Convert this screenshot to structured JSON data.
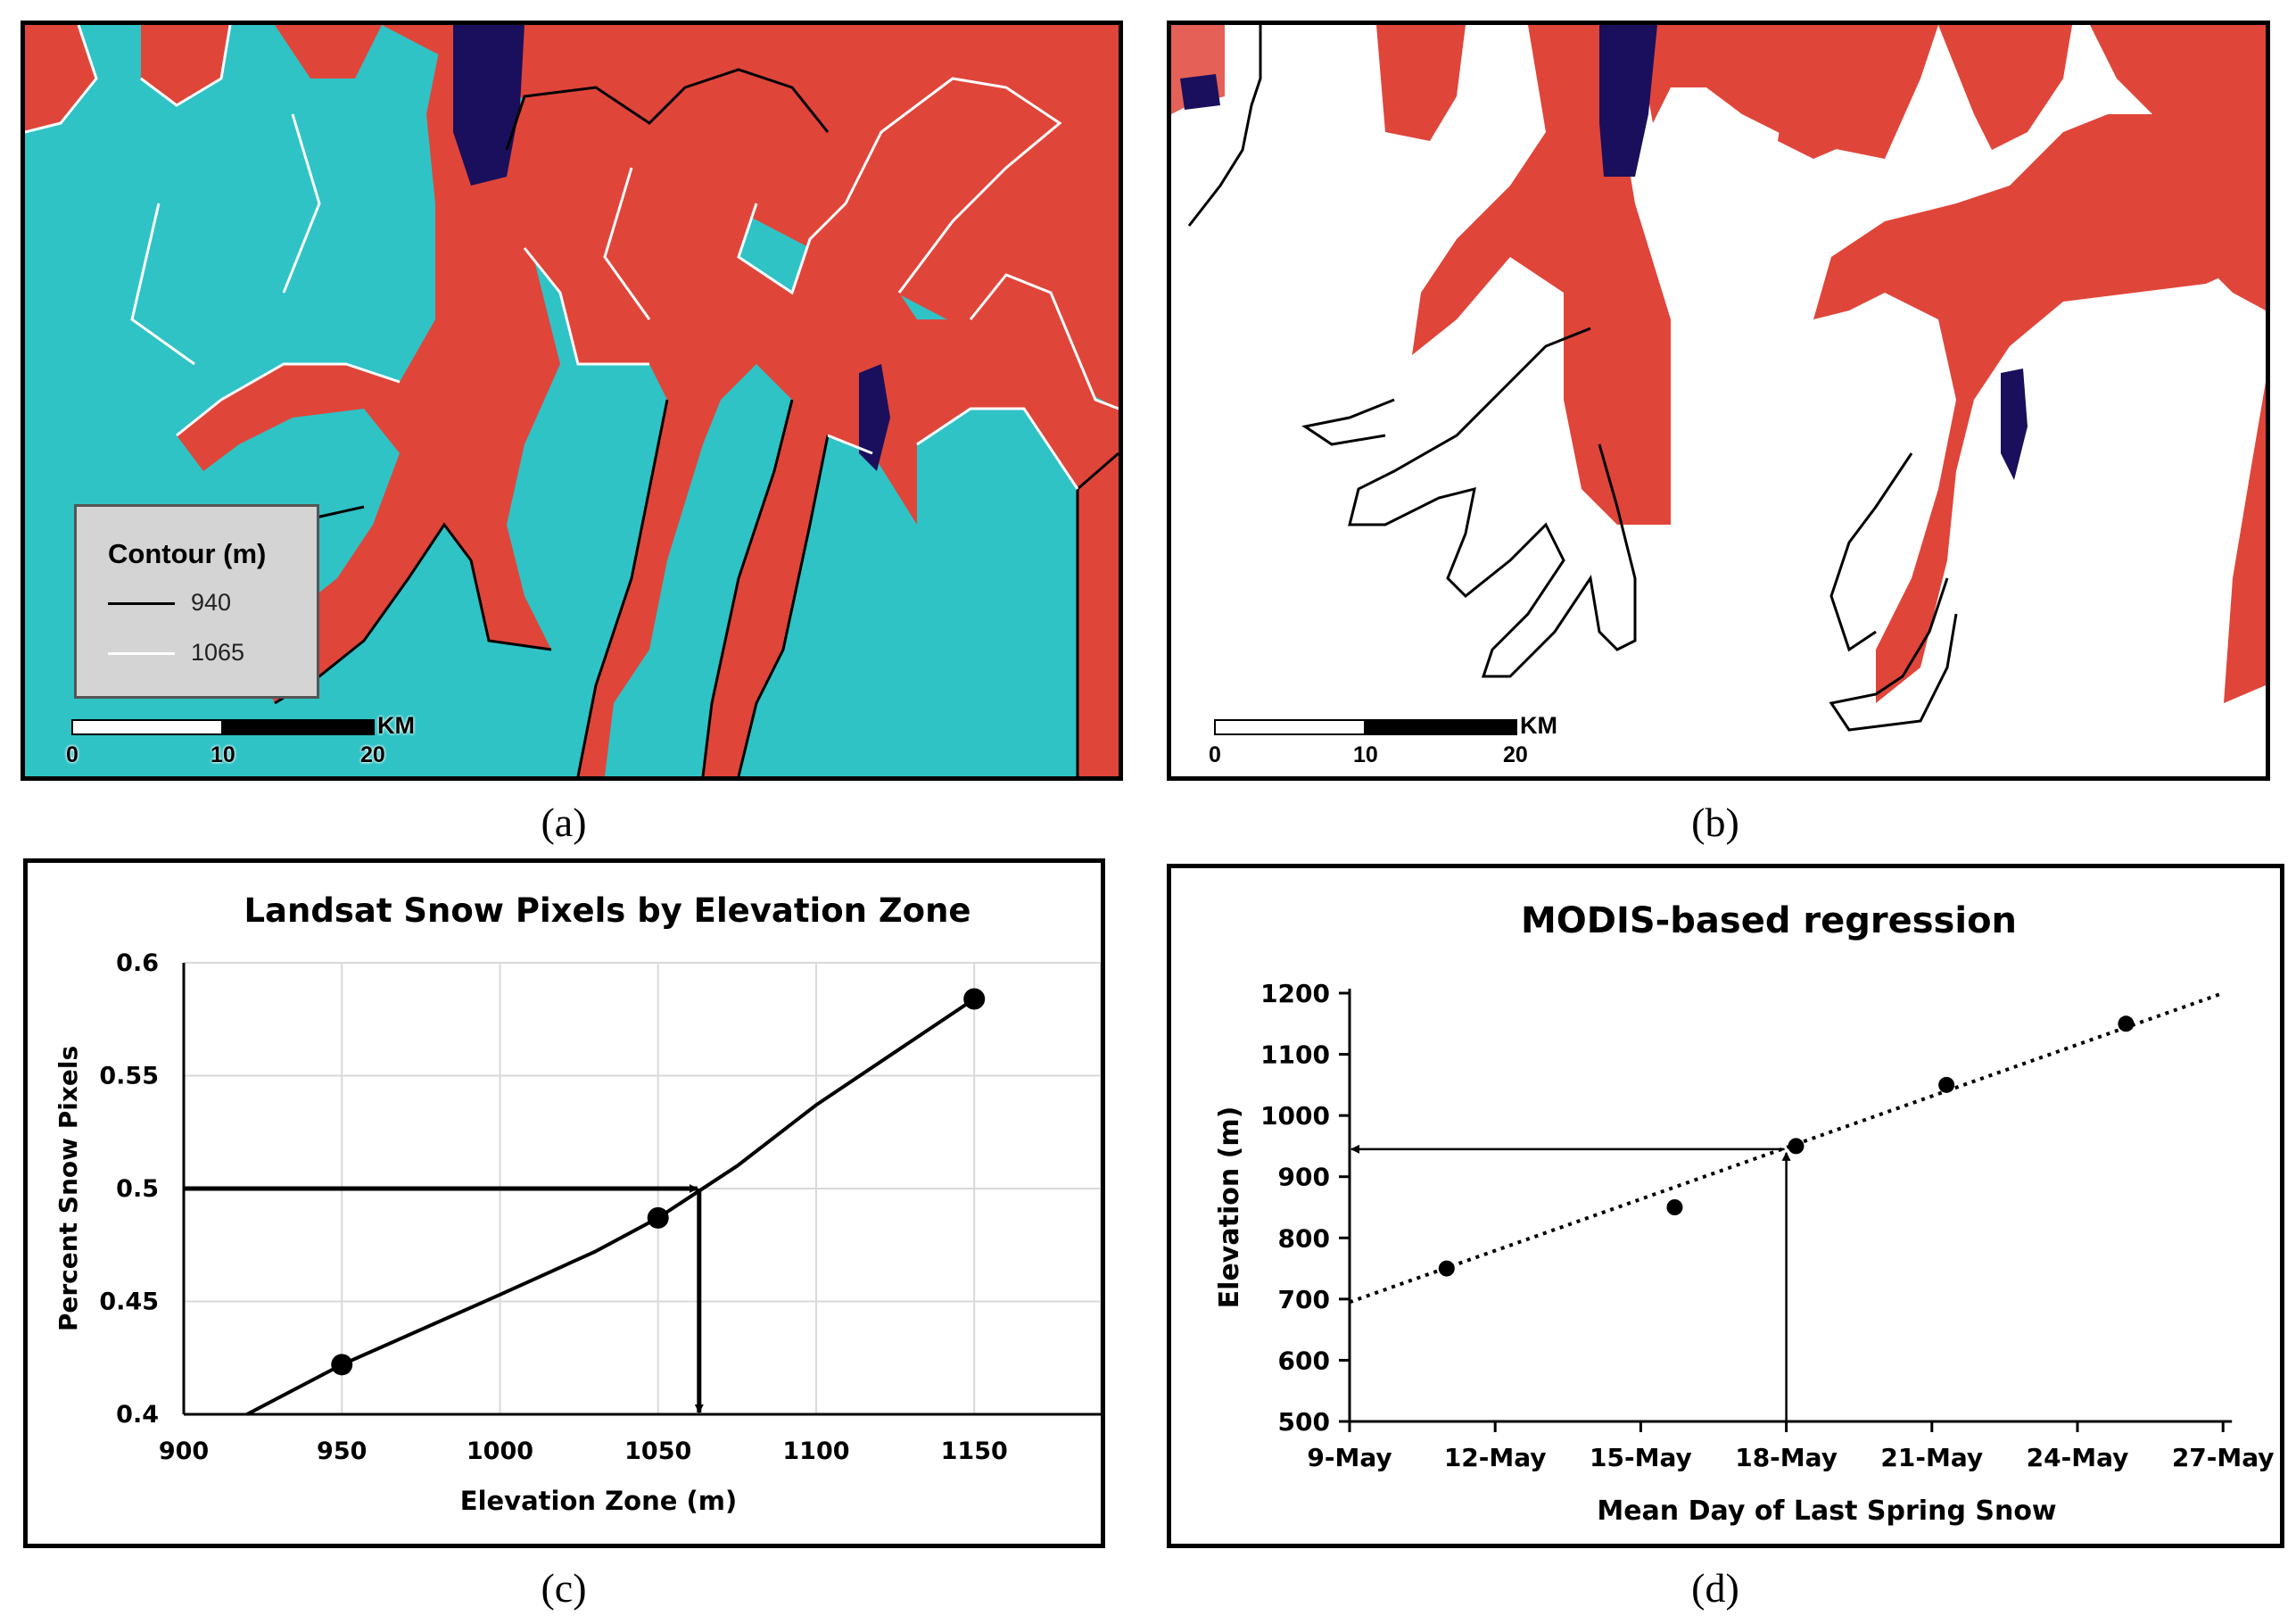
{
  "panels": {
    "a": {
      "caption": "(a)",
      "legend": {
        "title": "Contour (m)",
        "items": [
          {
            "label": "940",
            "color": "#000000"
          },
          {
            "label": "1065",
            "color": "#ffffff"
          }
        ]
      },
      "scalebar": {
        "unit": "KM",
        "ticks": [
          "0",
          "10",
          "20"
        ]
      },
      "colors": {
        "snow": "#2fc3c6",
        "land": "#e0453a",
        "water": "#1a0f5c"
      }
    },
    "b": {
      "caption": "(b)",
      "scalebar": {
        "unit": "KM",
        "ticks": [
          "0",
          "10",
          "20"
        ]
      },
      "colors": {
        "snow": "#ffffff",
        "land": "#e0453a",
        "water": "#1a0f5c"
      }
    },
    "c": {
      "caption": "(c)"
    },
    "d": {
      "caption": "(d)"
    }
  },
  "chart_data": [
    {
      "type": "line",
      "title": "Landsat Snow Pixels by Elevation Zone",
      "xlabel": "Elevation Zone (m)",
      "ylabel": "Percent  Snow Pixels",
      "xlim": [
        900,
        1190
      ],
      "ylim": [
        0.4,
        0.6
      ],
      "xticks": [
        "900",
        "950",
        "1000",
        "1050",
        "1100",
        "1150"
      ],
      "yticks": [
        "0.4",
        "0.45",
        "0.5",
        "0.55",
        "0.6"
      ],
      "grid": true,
      "series": [
        {
          "x": [
            950,
            1050,
            1150
          ],
          "y": [
            0.422,
            0.487,
            0.584
          ]
        }
      ],
      "curve": {
        "x": [
          920,
          950,
          1000,
          1030,
          1050,
          1075,
          1100,
          1150
        ],
        "y": [
          0.4,
          0.422,
          0.453,
          0.472,
          0.487,
          0.51,
          0.537,
          0.584
        ]
      },
      "annotations": {
        "arrow_from_y": 0.5,
        "intersect_x": 1063
      }
    },
    {
      "type": "scatter",
      "title": "MODIS-based regression",
      "xlabel": "Mean Day of Last Spring Snow",
      "ylabel": "Elevation (m)",
      "xticks": [
        "9-May",
        "12-May",
        "15-May",
        "18-May",
        "21-May",
        "24-May",
        "27-May"
      ],
      "yticks": [
        "500",
        "600",
        "700",
        "800",
        "900",
        "1000",
        "1100",
        "1200"
      ],
      "ylim": [
        500,
        1200
      ],
      "grid": false,
      "series": [
        {
          "x": [
            "11-May",
            "15.7-May",
            "18.2-May",
            "21.3-May",
            "25-May"
          ],
          "x_days": [
            2,
            6.7,
            9.2,
            12.3,
            16
          ],
          "y": [
            750,
            850,
            950,
            1050,
            1150
          ]
        }
      ],
      "trendline": {
        "x_days": [
          0,
          18
        ],
        "y": [
          695,
          1200
        ],
        "style": "dotted"
      },
      "annotations": {
        "arrow_up_x_days": 9,
        "arrow_left_y": 945
      }
    }
  ]
}
